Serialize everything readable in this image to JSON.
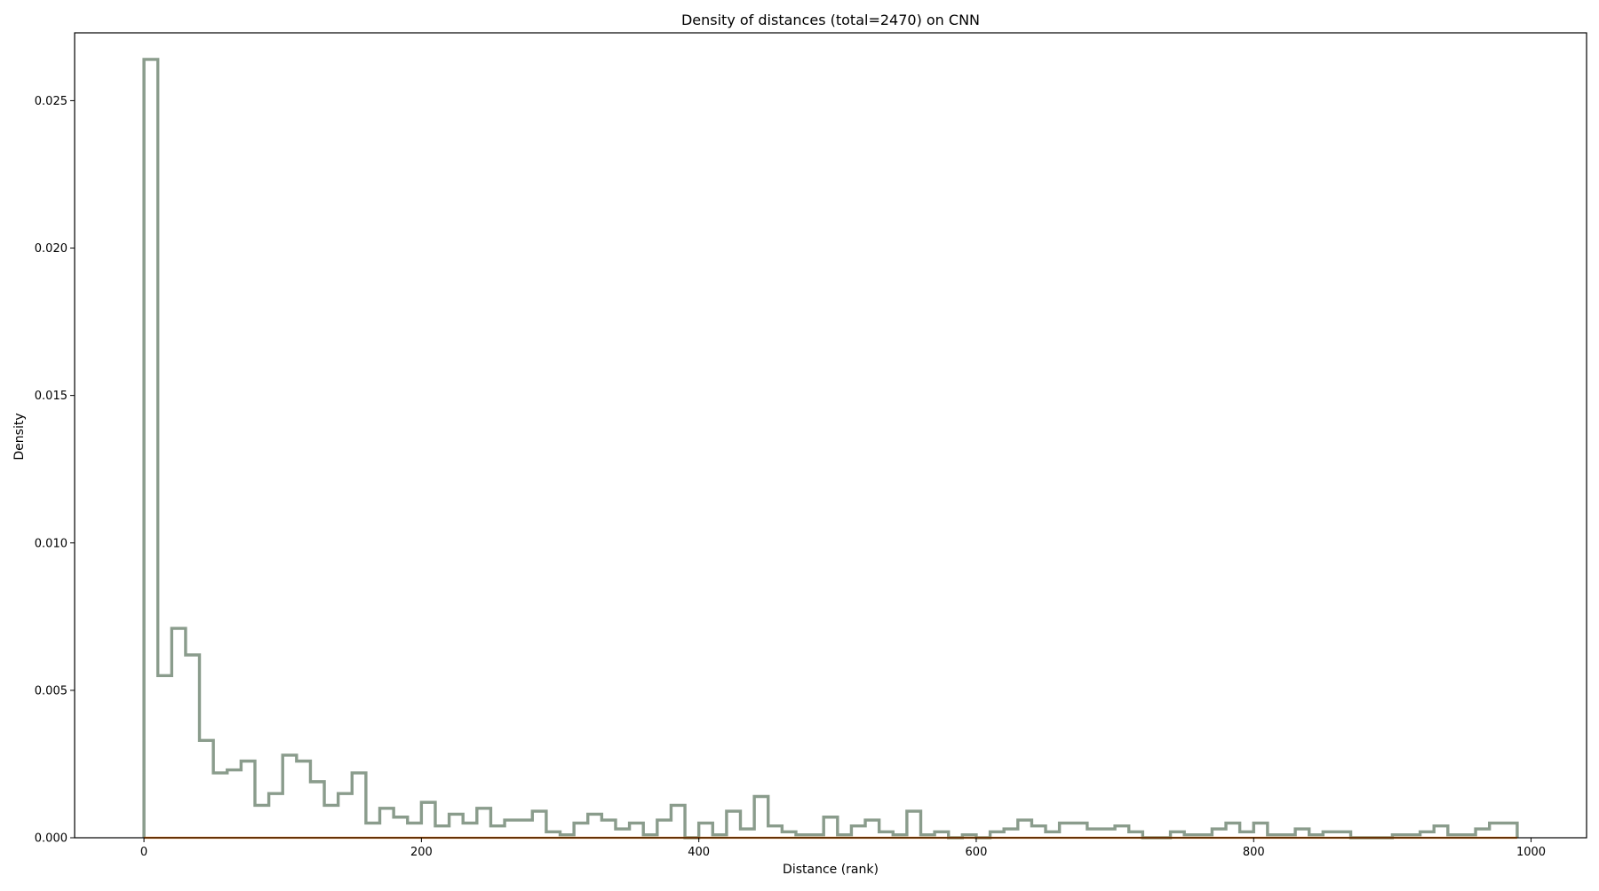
{
  "chart_data": {
    "type": "histogram",
    "title": "Density of distances (total=2470) on CNN",
    "xlabel": "Distance (rank)",
    "ylabel": "Density",
    "xlim": [
      -50,
      1040
    ],
    "ylim": [
      0,
      0.0273
    ],
    "xticks": [
      0,
      200,
      400,
      600,
      800,
      1000
    ],
    "xtick_labels": [
      "0",
      "200",
      "400",
      "600",
      "800",
      "1000"
    ],
    "yticks": [
      0,
      0.005,
      0.01,
      0.015,
      0.02,
      0.025
    ],
    "ytick_labels": [
      "0.000",
      "0.005",
      "0.010",
      "0.015",
      "0.020",
      "0.025"
    ],
    "grid": false,
    "bin_edges_start": 0,
    "bin_width": 10,
    "series": [
      {
        "color": "#8a9c8c",
        "values": [
          0.0264,
          0.0055,
          0.0071,
          0.0062,
          0.0033,
          0.0022,
          0.0023,
          0.0026,
          0.0011,
          0.0015,
          0.0028,
          0.0026,
          0.0019,
          0.0011,
          0.0015,
          0.0022,
          0.0005,
          0.001,
          0.0007,
          0.0005,
          0.0012,
          0.0004,
          0.0008,
          0.0005,
          0.001,
          0.0004,
          0.0006,
          0.0006,
          0.0009,
          0.0002,
          0.0001,
          0.0005,
          0.0008,
          0.0006,
          0.0003,
          0.0005,
          0.0001,
          0.0006,
          0.0011,
          0.0,
          0.0005,
          0.0001,
          0.0009,
          0.0003,
          0.0014,
          0.0004,
          0.0002,
          0.0001,
          0.0001,
          0.0007,
          0.0001,
          0.0004,
          0.0006,
          0.0002,
          0.0001,
          0.0009,
          0.0001,
          0.0002,
          0.0,
          0.0001,
          0.0,
          0.0002,
          0.0003,
          0.0006,
          0.0004,
          0.0002,
          0.0005,
          0.0005,
          0.0003,
          0.0003,
          0.0004,
          0.0002,
          0.0,
          0.0,
          0.0002,
          0.0001,
          0.0001,
          0.0003,
          0.0005,
          0.0002,
          0.0005,
          0.0001,
          0.0001,
          0.0003,
          0.0001,
          0.0002,
          0.0002,
          0.0,
          0.0,
          0.0,
          0.0001,
          0.0001,
          0.0002,
          0.0004,
          0.0001,
          0.0001,
          0.0003,
          0.0005,
          0.0005
        ]
      },
      {
        "color": "#ff7f0e",
        "values": [
          0,
          0,
          0,
          0,
          0,
          0,
          0,
          0,
          0,
          0,
          0,
          0,
          0,
          0,
          0,
          0,
          0,
          0,
          0,
          0,
          0,
          0,
          0,
          0,
          0,
          0,
          0,
          0,
          0,
          0,
          0,
          0,
          0,
          0,
          0,
          0,
          0,
          0,
          0,
          0,
          0,
          0,
          0,
          0,
          0,
          0,
          0,
          0,
          0,
          0,
          0,
          0,
          0,
          0,
          0,
          0,
          0,
          0,
          0,
          0,
          0,
          0,
          0,
          0,
          0,
          0,
          0,
          0,
          0,
          0,
          0,
          0,
          0,
          0,
          0,
          0,
          0,
          0,
          0,
          0,
          0,
          0,
          0,
          0,
          0,
          0,
          0,
          0,
          0,
          0,
          0,
          0,
          0,
          0,
          0,
          0,
          0,
          0,
          0
        ]
      }
    ]
  }
}
